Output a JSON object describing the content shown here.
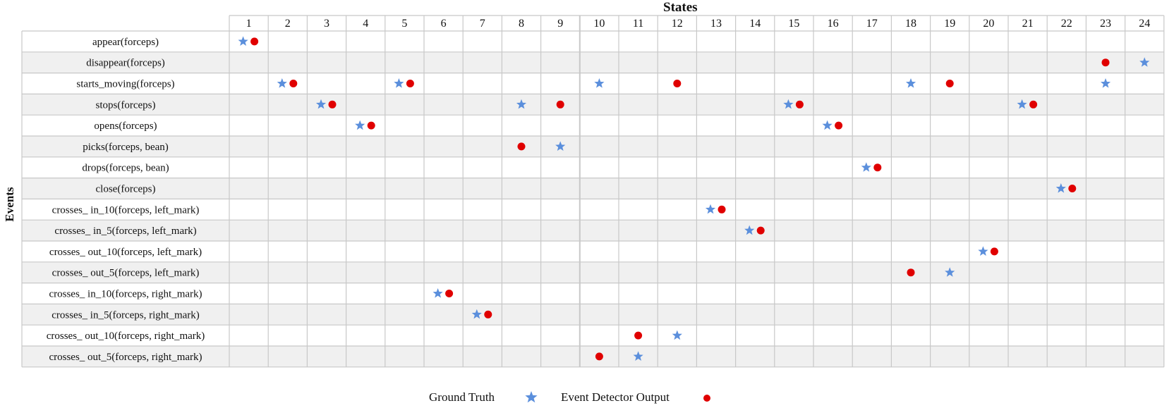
{
  "title": "States",
  "y_axis_label": "Events",
  "states": [
    "1",
    "2",
    "3",
    "4",
    "5",
    "6",
    "7",
    "8",
    "9",
    "10",
    "11",
    "12",
    "13",
    "14",
    "15",
    "16",
    "17",
    "18",
    "19",
    "20",
    "21",
    "22",
    "23",
    "24"
  ],
  "events": [
    "appear(forceps)",
    "disappear(forceps)",
    "starts_moving(forceps)",
    "stops(forceps)",
    "opens(forceps)",
    "picks(forceps, bean)",
    "drops(forceps, bean)",
    "close(forceps)",
    "crosses_ in_10(forceps, left_mark)",
    "crosses_ in_5(forceps, left_mark)",
    "crosses_ out_10(forceps, left_mark)",
    "crosses_ out_5(forceps, left_mark)",
    "crosses_ in_10(forceps, right_mark)",
    "crosses_ in_5(forceps, right_mark)",
    "crosses_ out_10(forceps, right_mark)",
    "crosses_ out_5(forceps, right_mark)"
  ],
  "ground_truth": [
    {
      "event": 0,
      "state": 1
    },
    {
      "event": 1,
      "state": 24
    },
    {
      "event": 2,
      "state": 2
    },
    {
      "event": 2,
      "state": 5
    },
    {
      "event": 2,
      "state": 10
    },
    {
      "event": 2,
      "state": 18
    },
    {
      "event": 2,
      "state": 23
    },
    {
      "event": 3,
      "state": 3
    },
    {
      "event": 3,
      "state": 8
    },
    {
      "event": 3,
      "state": 15
    },
    {
      "event": 3,
      "state": 21
    },
    {
      "event": 4,
      "state": 4
    },
    {
      "event": 4,
      "state": 16
    },
    {
      "event": 5,
      "state": 9
    },
    {
      "event": 6,
      "state": 17
    },
    {
      "event": 7,
      "state": 22
    },
    {
      "event": 8,
      "state": 13
    },
    {
      "event": 9,
      "state": 14
    },
    {
      "event": 10,
      "state": 20
    },
    {
      "event": 11,
      "state": 19
    },
    {
      "event": 12,
      "state": 6
    },
    {
      "event": 13,
      "state": 7
    },
    {
      "event": 14,
      "state": 12
    },
    {
      "event": 15,
      "state": 11
    }
  ],
  "detector_output": [
    {
      "event": 0,
      "state": 1
    },
    {
      "event": 1,
      "state": 23
    },
    {
      "event": 2,
      "state": 2
    },
    {
      "event": 2,
      "state": 5
    },
    {
      "event": 2,
      "state": 12
    },
    {
      "event": 2,
      "state": 19
    },
    {
      "event": 3,
      "state": 3
    },
    {
      "event": 3,
      "state": 9
    },
    {
      "event": 3,
      "state": 15
    },
    {
      "event": 3,
      "state": 21
    },
    {
      "event": 4,
      "state": 4
    },
    {
      "event": 4,
      "state": 16
    },
    {
      "event": 5,
      "state": 8
    },
    {
      "event": 6,
      "state": 17
    },
    {
      "event": 7,
      "state": 22
    },
    {
      "event": 8,
      "state": 13
    },
    {
      "event": 9,
      "state": 14
    },
    {
      "event": 10,
      "state": 20
    },
    {
      "event": 11,
      "state": 18
    },
    {
      "event": 12,
      "state": 6
    },
    {
      "event": 13,
      "state": 7
    },
    {
      "event": 14,
      "state": 11
    },
    {
      "event": 15,
      "state": 10
    }
  ],
  "legend": {
    "ground_truth_label": "Ground Truth",
    "detector_label": "Event Detector Output"
  },
  "colors": {
    "star": "#5b8fdc",
    "dot": "#e00000",
    "grid": "#c8c8c8",
    "row_alt": "#f0f0f0"
  }
}
